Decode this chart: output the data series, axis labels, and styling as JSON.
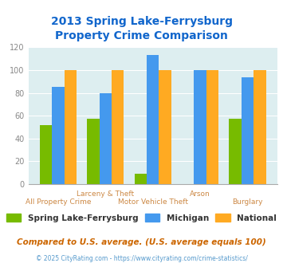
{
  "title": "2013 Spring Lake-Ferrysburg\nProperty Crime Comparison",
  "spring_lake": [
    52,
    57,
    9,
    0,
    57
  ],
  "michigan": [
    85,
    80,
    113,
    100,
    94
  ],
  "national": [
    100,
    100,
    100,
    100,
    100
  ],
  "groups": [
    "All Property Crime",
    "Larceny & Theft",
    "Motor Vehicle Theft",
    "Arson",
    "Burglary"
  ],
  "top_row_labels": {
    "1": "Larceny & Theft",
    "3": "Arson"
  },
  "bottom_row_labels": {
    "0": "All Property Crime",
    "2": "Motor Vehicle Theft",
    "4": "Burglary"
  },
  "color_spring": "#77bb00",
  "color_michigan": "#4499ee",
  "color_national": "#ffaa22",
  "bg_color": "#ddeef0",
  "title_color": "#1166cc",
  "label_color_top": "#cc8844",
  "label_color_bottom": "#cc8844",
  "legend_label_spring": "Spring Lake-Ferrysburg",
  "legend_label_michigan": "Michigan",
  "legend_label_national": "National",
  "footnote1": "Compared to U.S. average. (U.S. average equals 100)",
  "footnote2": "© 2025 CityRating.com - https://www.cityrating.com/crime-statistics/",
  "ylim": [
    0,
    120
  ],
  "yticks": [
    0,
    20,
    40,
    60,
    80,
    100,
    120
  ]
}
